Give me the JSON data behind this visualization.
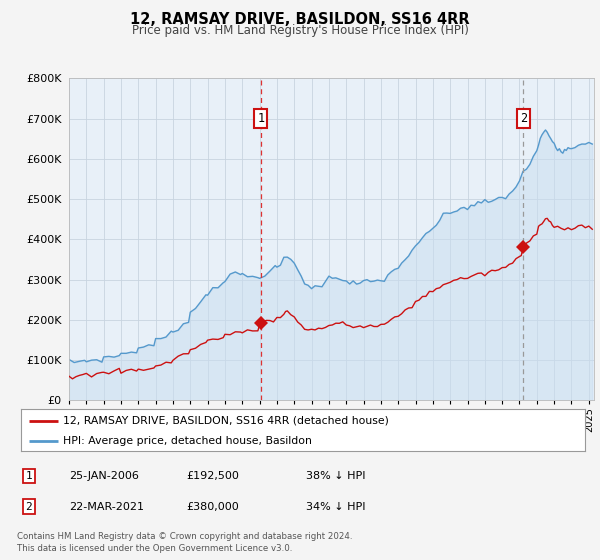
{
  "title": "12, RAMSAY DRIVE, BASILDON, SS16 4RR",
  "subtitle": "Price paid vs. HM Land Registry's House Price Index (HPI)",
  "bg_color": "#f0f4f8",
  "plot_bg_color": "#e8f0f8",
  "grid_color": "#c8d4e0",
  "hpi_color": "#5599cc",
  "hpi_fill_color": "#c8ddf0",
  "price_color": "#cc1111",
  "marker_color": "#cc1111",
  "vline1_color": "#dd3333",
  "vline2_color": "#aaaaaa",
  "ylim": [
    0,
    800000
  ],
  "yticks": [
    0,
    100000,
    200000,
    300000,
    400000,
    500000,
    600000,
    700000,
    800000
  ],
  "xlim_start": 1995.0,
  "xlim_end": 2025.3,
  "sale1_x": 2006.07,
  "sale1_y": 192500,
  "sale2_x": 2021.22,
  "sale2_y": 380000,
  "legend_red_label": "12, RAMSAY DRIVE, BASILDON, SS16 4RR (detached house)",
  "legend_blue_label": "HPI: Average price, detached house, Basildon",
  "table_row1": [
    "1",
    "25-JAN-2006",
    "£192,500",
    "38% ↓ HPI"
  ],
  "table_row2": [
    "2",
    "22-MAR-2021",
    "£380,000",
    "34% ↓ HPI"
  ],
  "footer1": "Contains HM Land Registry data © Crown copyright and database right 2024.",
  "footer2": "This data is licensed under the Open Government Licence v3.0.",
  "hpi_anchors": [
    [
      1995.0,
      95000
    ],
    [
      1995.3,
      96000
    ],
    [
      1995.6,
      97000
    ],
    [
      1995.9,
      98000
    ],
    [
      1996.0,
      99000
    ],
    [
      1996.3,
      100000
    ],
    [
      1996.6,
      101000
    ],
    [
      1996.9,
      102000
    ],
    [
      1997.0,
      104000
    ],
    [
      1997.3,
      107000
    ],
    [
      1997.6,
      110000
    ],
    [
      1997.9,
      112000
    ],
    [
      1998.0,
      115000
    ],
    [
      1998.3,
      118000
    ],
    [
      1998.6,
      121000
    ],
    [
      1998.9,
      124000
    ],
    [
      1999.0,
      128000
    ],
    [
      1999.3,
      132000
    ],
    [
      1999.6,
      137000
    ],
    [
      1999.9,
      142000
    ],
    [
      2000.0,
      147000
    ],
    [
      2000.3,
      153000
    ],
    [
      2000.6,
      159000
    ],
    [
      2000.9,
      164000
    ],
    [
      2001.0,
      170000
    ],
    [
      2001.3,
      180000
    ],
    [
      2001.6,
      192000
    ],
    [
      2001.9,
      203000
    ],
    [
      2002.0,
      215000
    ],
    [
      2002.3,
      230000
    ],
    [
      2002.6,
      248000
    ],
    [
      2002.9,
      258000
    ],
    [
      2003.0,
      268000
    ],
    [
      2003.3,
      278000
    ],
    [
      2003.6,
      288000
    ],
    [
      2003.9,
      295000
    ],
    [
      2004.0,
      300000
    ],
    [
      2004.3,
      308000
    ],
    [
      2004.6,
      312000
    ],
    [
      2004.9,
      314000
    ],
    [
      2005.0,
      312000
    ],
    [
      2005.3,
      308000
    ],
    [
      2005.6,
      306000
    ],
    [
      2005.9,
      308000
    ],
    [
      2006.0,
      310000
    ],
    [
      2006.3,
      316000
    ],
    [
      2006.6,
      320000
    ],
    [
      2006.9,
      326000
    ],
    [
      2007.0,
      330000
    ],
    [
      2007.2,
      338000
    ],
    [
      2007.4,
      348000
    ],
    [
      2007.6,
      355000
    ],
    [
      2007.8,
      350000
    ],
    [
      2008.0,
      340000
    ],
    [
      2008.2,
      325000
    ],
    [
      2008.4,
      310000
    ],
    [
      2008.6,
      295000
    ],
    [
      2008.8,
      284000
    ],
    [
      2009.0,
      278000
    ],
    [
      2009.2,
      280000
    ],
    [
      2009.4,
      285000
    ],
    [
      2009.6,
      290000
    ],
    [
      2009.8,
      296000
    ],
    [
      2010.0,
      302000
    ],
    [
      2010.2,
      305000
    ],
    [
      2010.4,
      308000
    ],
    [
      2010.6,
      306000
    ],
    [
      2010.8,
      302000
    ],
    [
      2011.0,
      298000
    ],
    [
      2011.2,
      294000
    ],
    [
      2011.4,
      291000
    ],
    [
      2011.6,
      290000
    ],
    [
      2011.8,
      291000
    ],
    [
      2012.0,
      292000
    ],
    [
      2012.2,
      294000
    ],
    [
      2012.4,
      296000
    ],
    [
      2012.6,
      295000
    ],
    [
      2012.8,
      296000
    ],
    [
      2013.0,
      298000
    ],
    [
      2013.2,
      303000
    ],
    [
      2013.4,
      309000
    ],
    [
      2013.6,
      316000
    ],
    [
      2013.8,
      324000
    ],
    [
      2014.0,
      332000
    ],
    [
      2014.2,
      342000
    ],
    [
      2014.4,
      352000
    ],
    [
      2014.6,
      360000
    ],
    [
      2014.8,
      368000
    ],
    [
      2015.0,
      378000
    ],
    [
      2015.2,
      390000
    ],
    [
      2015.4,
      402000
    ],
    [
      2015.6,
      412000
    ],
    [
      2015.8,
      420000
    ],
    [
      2016.0,
      428000
    ],
    [
      2016.2,
      438000
    ],
    [
      2016.4,
      448000
    ],
    [
      2016.6,
      456000
    ],
    [
      2016.8,
      462000
    ],
    [
      2017.0,
      466000
    ],
    [
      2017.2,
      470000
    ],
    [
      2017.4,
      474000
    ],
    [
      2017.6,
      476000
    ],
    [
      2017.8,
      478000
    ],
    [
      2018.0,
      480000
    ],
    [
      2018.2,
      483000
    ],
    [
      2018.4,
      486000
    ],
    [
      2018.6,
      488000
    ],
    [
      2018.8,
      490000
    ],
    [
      2019.0,
      492000
    ],
    [
      2019.2,
      494000
    ],
    [
      2019.4,
      496000
    ],
    [
      2019.6,
      498000
    ],
    [
      2019.8,
      500000
    ],
    [
      2020.0,
      502000
    ],
    [
      2020.2,
      506000
    ],
    [
      2020.4,
      512000
    ],
    [
      2020.6,
      520000
    ],
    [
      2020.8,
      532000
    ],
    [
      2021.0,
      548000
    ],
    [
      2021.2,
      562000
    ],
    [
      2021.4,
      576000
    ],
    [
      2021.6,
      590000
    ],
    [
      2021.8,
      604000
    ],
    [
      2022.0,
      620000
    ],
    [
      2022.1,
      635000
    ],
    [
      2022.2,
      648000
    ],
    [
      2022.3,
      658000
    ],
    [
      2022.4,
      665000
    ],
    [
      2022.5,
      668000
    ],
    [
      2022.6,
      665000
    ],
    [
      2022.7,
      660000
    ],
    [
      2022.8,
      652000
    ],
    [
      2022.9,
      645000
    ],
    [
      2023.0,
      638000
    ],
    [
      2023.1,
      632000
    ],
    [
      2023.2,
      628000
    ],
    [
      2023.3,
      625000
    ],
    [
      2023.4,
      623000
    ],
    [
      2023.5,
      622000
    ],
    [
      2023.6,
      622000
    ],
    [
      2023.7,
      624000
    ],
    [
      2023.8,
      626000
    ],
    [
      2023.9,
      628000
    ],
    [
      2024.0,
      630000
    ],
    [
      2024.2,
      633000
    ],
    [
      2024.4,
      636000
    ],
    [
      2024.6,
      638000
    ],
    [
      2024.8,
      640000
    ],
    [
      2025.0,
      642000
    ],
    [
      2025.2,
      643000
    ]
  ],
  "price_anchors": [
    [
      1995.0,
      60000
    ],
    [
      1995.2,
      59000
    ],
    [
      1995.4,
      59500
    ],
    [
      1995.6,
      60000
    ],
    [
      1995.8,
      61000
    ],
    [
      1996.0,
      62000
    ],
    [
      1996.3,
      63000
    ],
    [
      1996.6,
      64500
    ],
    [
      1996.9,
      66000
    ],
    [
      1997.0,
      67000
    ],
    [
      1997.3,
      69000
    ],
    [
      1997.6,
      72000
    ],
    [
      1997.9,
      74000
    ],
    [
      1998.0,
      72000
    ],
    [
      1998.3,
      73000
    ],
    [
      1998.6,
      74000
    ],
    [
      1998.9,
      75000
    ],
    [
      1999.0,
      76000
    ],
    [
      1999.3,
      78000
    ],
    [
      1999.6,
      80000
    ],
    [
      1999.9,
      83000
    ],
    [
      2000.0,
      85000
    ],
    [
      2000.3,
      88000
    ],
    [
      2000.6,
      92000
    ],
    [
      2000.9,
      96000
    ],
    [
      2001.0,
      100000
    ],
    [
      2001.3,
      107000
    ],
    [
      2001.6,
      114000
    ],
    [
      2001.9,
      120000
    ],
    [
      2002.0,
      124000
    ],
    [
      2002.3,
      131000
    ],
    [
      2002.6,
      138000
    ],
    [
      2002.9,
      143000
    ],
    [
      2003.0,
      146000
    ],
    [
      2003.3,
      152000
    ],
    [
      2003.6,
      157000
    ],
    [
      2003.9,
      160000
    ],
    [
      2004.0,
      162000
    ],
    [
      2004.3,
      164000
    ],
    [
      2004.6,
      167000
    ],
    [
      2004.9,
      169000
    ],
    [
      2005.0,
      170000
    ],
    [
      2005.3,
      172000
    ],
    [
      2005.6,
      175000
    ],
    [
      2005.9,
      179000
    ],
    [
      2006.0,
      182000
    ],
    [
      2006.07,
      192500
    ],
    [
      2006.2,
      194000
    ],
    [
      2006.4,
      196000
    ],
    [
      2006.6,
      198000
    ],
    [
      2006.8,
      200000
    ],
    [
      2007.0,
      203000
    ],
    [
      2007.2,
      210000
    ],
    [
      2007.4,
      218000
    ],
    [
      2007.5,
      222000
    ],
    [
      2007.6,
      220000
    ],
    [
      2007.8,
      212000
    ],
    [
      2008.0,
      205000
    ],
    [
      2008.2,
      196000
    ],
    [
      2008.4,
      188000
    ],
    [
      2008.6,
      180000
    ],
    [
      2008.8,
      176000
    ],
    [
      2009.0,
      175000
    ],
    [
      2009.2,
      176000
    ],
    [
      2009.4,
      178000
    ],
    [
      2009.6,
      180000
    ],
    [
      2009.8,
      183000
    ],
    [
      2010.0,
      186000
    ],
    [
      2010.2,
      188000
    ],
    [
      2010.4,
      190000
    ],
    [
      2010.6,
      191000
    ],
    [
      2010.8,
      190000
    ],
    [
      2011.0,
      188000
    ],
    [
      2011.2,
      186000
    ],
    [
      2011.4,
      184000
    ],
    [
      2011.6,
      183000
    ],
    [
      2011.8,
      183000
    ],
    [
      2012.0,
      183000
    ],
    [
      2012.2,
      184000
    ],
    [
      2012.4,
      185000
    ],
    [
      2012.6,
      184000
    ],
    [
      2012.8,
      185000
    ],
    [
      2013.0,
      186000
    ],
    [
      2013.2,
      189000
    ],
    [
      2013.4,
      193000
    ],
    [
      2013.6,
      198000
    ],
    [
      2013.8,
      204000
    ],
    [
      2014.0,
      210000
    ],
    [
      2014.2,
      217000
    ],
    [
      2014.4,
      224000
    ],
    [
      2014.6,
      230000
    ],
    [
      2014.8,
      236000
    ],
    [
      2015.0,
      242000
    ],
    [
      2015.2,
      249000
    ],
    [
      2015.4,
      256000
    ],
    [
      2015.6,
      262000
    ],
    [
      2015.8,
      267000
    ],
    [
      2016.0,
      272000
    ],
    [
      2016.2,
      278000
    ],
    [
      2016.4,
      284000
    ],
    [
      2016.6,
      288000
    ],
    [
      2016.8,
      291000
    ],
    [
      2017.0,
      294000
    ],
    [
      2017.2,
      297000
    ],
    [
      2017.4,
      300000
    ],
    [
      2017.6,
      302000
    ],
    [
      2017.8,
      304000
    ],
    [
      2018.0,
      306000
    ],
    [
      2018.2,
      308000
    ],
    [
      2018.4,
      310000
    ],
    [
      2018.6,
      312000
    ],
    [
      2018.8,
      314000
    ],
    [
      2019.0,
      315000
    ],
    [
      2019.2,
      317000
    ],
    [
      2019.4,
      319000
    ],
    [
      2019.6,
      322000
    ],
    [
      2019.8,
      326000
    ],
    [
      2020.0,
      329000
    ],
    [
      2020.2,
      332000
    ],
    [
      2020.4,
      336000
    ],
    [
      2020.6,
      341000
    ],
    [
      2020.8,
      348000
    ],
    [
      2021.0,
      356000
    ],
    [
      2021.1,
      362000
    ],
    [
      2021.22,
      380000
    ],
    [
      2021.4,
      388000
    ],
    [
      2021.6,
      398000
    ],
    [
      2021.8,
      410000
    ],
    [
      2022.0,
      420000
    ],
    [
      2022.1,
      430000
    ],
    [
      2022.2,
      438000
    ],
    [
      2022.3,
      445000
    ],
    [
      2022.4,
      450000
    ],
    [
      2022.5,
      452000
    ],
    [
      2022.6,
      450000
    ],
    [
      2022.7,
      446000
    ],
    [
      2022.8,
      442000
    ],
    [
      2022.9,
      438000
    ],
    [
      2023.0,
      434000
    ],
    [
      2023.2,
      430000
    ],
    [
      2023.4,
      426000
    ],
    [
      2023.6,
      424000
    ],
    [
      2023.8,
      425000
    ],
    [
      2024.0,
      427000
    ],
    [
      2024.2,
      429000
    ],
    [
      2024.4,
      431000
    ],
    [
      2024.6,
      430000
    ],
    [
      2024.8,
      429000
    ],
    [
      2025.0,
      428000
    ],
    [
      2025.2,
      427000
    ]
  ]
}
